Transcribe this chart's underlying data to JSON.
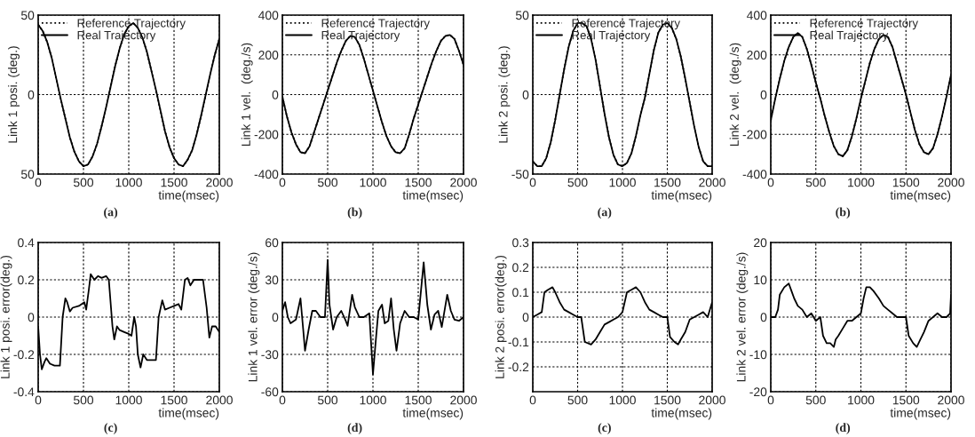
{
  "chart_data": [
    {
      "type": "line",
      "ylabel": "Link 1 posi. (deg.)",
      "xlabel": "time(msec)",
      "annotations": [
        "(a)"
      ],
      "xlim": [
        0,
        2000
      ],
      "xticks": [
        0,
        500,
        1000,
        1500,
        2000
      ],
      "ylim": [
        -50,
        50
      ],
      "yticks": [
        {
          "value": -50,
          "label": "50"
        },
        0,
        50
      ],
      "grid": true,
      "legend": "top left",
      "x": [
        0,
        50,
        100,
        150,
        200,
        250,
        300,
        350,
        400,
        450,
        500,
        550,
        600,
        650,
        700,
        750,
        800,
        850,
        900,
        950,
        1000,
        1050,
        1100,
        1150,
        1200,
        1250,
        1300,
        1350,
        1400,
        1450,
        1500,
        1550,
        1600,
        1650,
        1700,
        1750,
        1800,
        1850,
        1900,
        1950,
        2000
      ],
      "series": [
        {
          "name": "Reference Trajectory",
          "color": "#000000",
          "line_style": "dotted",
          "values": [
            44,
            40,
            33,
            23,
            10,
            -3,
            -15,
            -27,
            -36,
            -42,
            -45,
            -44,
            -39,
            -31,
            -20,
            -8,
            5,
            18,
            29,
            38,
            43,
            45,
            42,
            36,
            27,
            15,
            3,
            -10,
            -23,
            -33,
            -40,
            -44,
            -45,
            -41,
            -35,
            -25,
            -13,
            0,
            13,
            25,
            35
          ]
        },
        {
          "name": "Real Trajectory",
          "color": "#000000",
          "line_style": "solid",
          "values": [
            44,
            40,
            33,
            23,
            10,
            -3,
            -15,
            -27,
            -36,
            -42,
            -45,
            -44,
            -39,
            -31,
            -20,
            -8,
            5,
            18,
            29,
            38,
            43,
            45,
            42,
            36,
            27,
            15,
            3,
            -10,
            -23,
            -33,
            -40,
            -44,
            -45,
            -41,
            -35,
            -25,
            -13,
            0,
            13,
            25,
            35
          ]
        }
      ]
    },
    {
      "type": "line",
      "ylabel": "Link 1 vel.  (deg./s)",
      "xlabel": "time(msec)",
      "annotations": [
        "(b)"
      ],
      "xlim": [
        0,
        2000
      ],
      "xticks": [
        0,
        500,
        1000,
        1500,
        2000
      ],
      "ylim": [
        -400,
        400
      ],
      "yticks": [
        -400,
        -200,
        0,
        200,
        400
      ],
      "grid": true,
      "legend": "top left",
      "x": [
        0,
        50,
        100,
        150,
        200,
        250,
        300,
        350,
        400,
        450,
        500,
        550,
        600,
        650,
        700,
        750,
        800,
        850,
        900,
        950,
        1000,
        1050,
        1100,
        1150,
        1200,
        1250,
        1300,
        1350,
        1400,
        1450,
        1500,
        1550,
        1600,
        1650,
        1700,
        1750,
        1800,
        1850,
        1900,
        1950,
        2000
      ],
      "series": [
        {
          "name": "Reference Trajectory",
          "color": "#000000",
          "line_style": "dotted",
          "values": [
            -10,
            -110,
            -190,
            -250,
            -290,
            -295,
            -260,
            -190,
            -120,
            -50,
            20,
            90,
            160,
            220,
            270,
            295,
            290,
            250,
            180,
            100,
            20,
            -60,
            -140,
            -210,
            -260,
            -290,
            -295,
            -270,
            -200,
            -120,
            -50,
            20,
            90,
            160,
            220,
            270,
            295,
            300,
            280,
            220,
            150
          ]
        },
        {
          "name": "Real Trajectory",
          "color": "#000000",
          "line_style": "solid",
          "values": [
            -10,
            -110,
            -190,
            -250,
            -290,
            -295,
            -260,
            -190,
            -120,
            -50,
            20,
            90,
            160,
            220,
            270,
            295,
            290,
            250,
            180,
            100,
            20,
            -60,
            -140,
            -210,
            -260,
            -290,
            -295,
            -270,
            -200,
            -120,
            -50,
            20,
            90,
            160,
            220,
            270,
            295,
            300,
            280,
            220,
            150
          ]
        }
      ]
    },
    {
      "type": "line",
      "ylabel": "Link 2 posi. (deg.)",
      "xlabel": "time(msec)",
      "annotations": [
        "(a)"
      ],
      "xlim": [
        0,
        2000
      ],
      "xticks": [
        0,
        500,
        1000,
        1500,
        2000
      ],
      "ylim": [
        -50,
        50
      ],
      "yticks": [
        -50,
        0,
        50
      ],
      "grid": true,
      "legend": "top left",
      "x": [
        0,
        50,
        100,
        150,
        200,
        250,
        300,
        350,
        400,
        450,
        500,
        550,
        600,
        650,
        700,
        750,
        800,
        850,
        900,
        950,
        1000,
        1050,
        1100,
        1150,
        1200,
        1250,
        1300,
        1350,
        1400,
        1450,
        1500,
        1550,
        1600,
        1650,
        1700,
        1750,
        1800,
        1850,
        1900,
        1950,
        2000
      ],
      "series": [
        {
          "name": "Reference Trajectory",
          "color": "#000000",
          "line_style": "dotted",
          "values": [
            -42,
            -45,
            -45,
            -40,
            -30,
            -16,
            0,
            16,
            30,
            40,
            45,
            45,
            43,
            35,
            22,
            5,
            -12,
            -27,
            -38,
            -44,
            -45,
            -43,
            -37,
            -26,
            -13,
            -2,
            13,
            28,
            39,
            44,
            45,
            42,
            35,
            24,
            10,
            -5,
            -20,
            -33,
            -42,
            -45,
            -45
          ]
        },
        {
          "name": "Real Trajectory",
          "color": "#000000",
          "line_style": "solid",
          "values": [
            -42,
            -45,
            -45,
            -40,
            -30,
            -16,
            0,
            16,
            30,
            40,
            45,
            45,
            43,
            35,
            22,
            5,
            -12,
            -27,
            -38,
            -44,
            -45,
            -43,
            -37,
            -26,
            -13,
            -2,
            13,
            28,
            39,
            44,
            45,
            42,
            35,
            24,
            10,
            -5,
            -20,
            -33,
            -42,
            -45,
            -45
          ]
        }
      ]
    },
    {
      "type": "line",
      "ylabel": "Link 2 vel.  (deg./s)",
      "xlabel": "time(msec)",
      "annotations": [
        "(b)"
      ],
      "xlim": [
        0,
        2000
      ],
      "xticks": [
        0,
        500,
        1000,
        1500,
        2000
      ],
      "ylim": [
        -400,
        400
      ],
      "yticks": [
        -400,
        -200,
        0,
        200,
        400
      ],
      "grid": true,
      "legend": "top left",
      "x": [
        0,
        50,
        100,
        150,
        200,
        250,
        300,
        350,
        400,
        450,
        500,
        550,
        600,
        650,
        700,
        750,
        800,
        850,
        900,
        950,
        1000,
        1050,
        1100,
        1150,
        1200,
        1250,
        1300,
        1350,
        1400,
        1450,
        1500,
        1550,
        1600,
        1650,
        1700,
        1750,
        1800,
        1850,
        1900,
        1950,
        2000
      ],
      "series": [
        {
          "name": "Reference Trajectory",
          "color": "#000000",
          "line_style": "dotted",
          "values": [
            -130,
            -20,
            80,
            170,
            240,
            290,
            310,
            290,
            230,
            150,
            60,
            -20,
            -110,
            -190,
            -260,
            -300,
            -310,
            -280,
            -210,
            -120,
            -20,
            70,
            160,
            230,
            280,
            300,
            290,
            240,
            160,
            80,
            0,
            -90,
            -180,
            -250,
            -290,
            -300,
            -270,
            -200,
            -110,
            -10,
            100
          ]
        },
        {
          "name": "Real Trajectory",
          "color": "#000000",
          "line_style": "solid",
          "values": [
            -130,
            -20,
            80,
            170,
            240,
            290,
            310,
            290,
            230,
            150,
            60,
            -20,
            -110,
            -190,
            -260,
            -300,
            -310,
            -280,
            -210,
            -120,
            -20,
            70,
            160,
            230,
            280,
            300,
            290,
            240,
            160,
            80,
            0,
            -90,
            -180,
            -250,
            -290,
            -300,
            -270,
            -200,
            -110,
            -10,
            100
          ]
        }
      ]
    },
    {
      "type": "line",
      "ylabel": "Link 1 posi. error(deg.)",
      "xlabel": "time(msec)",
      "annotations": [
        "(c)"
      ],
      "xlim": [
        0,
        2000
      ],
      "xticks": [
        0,
        500,
        1000,
        1500,
        2000
      ],
      "ylim": [
        -0.4,
        0.4
      ],
      "yticks": [
        -0.4,
        -0.2,
        0,
        0.2,
        0.4
      ],
      "grid": true,
      "series": [
        {
          "color": "#000000",
          "line_style": "solid",
          "x": [
            0,
            20,
            40,
            70,
            90,
            130,
            180,
            240,
            270,
            300,
            320,
            350,
            380,
            450,
            510,
            530,
            560,
            580,
            620,
            660,
            700,
            750,
            780,
            820,
            840,
            870,
            900,
            950,
            1000,
            1030,
            1060,
            1080,
            1100,
            1130,
            1160,
            1200,
            1250,
            1300,
            1330,
            1370,
            1400,
            1450,
            1550,
            1580,
            1620,
            1650,
            1680,
            1720,
            1780,
            1820,
            1860,
            1890,
            1920,
            1960,
            2000
          ],
          "values": [
            -0.05,
            -0.2,
            -0.28,
            -0.24,
            -0.22,
            -0.25,
            -0.26,
            -0.26,
            0,
            0.1,
            0.08,
            0.03,
            0.05,
            0.06,
            0.08,
            0.04,
            0.15,
            0.23,
            0.2,
            0.22,
            0.21,
            0.22,
            0.2,
            -0.05,
            -0.12,
            -0.05,
            -0.07,
            -0.08,
            -0.09,
            -0.1,
            0,
            -0.05,
            -0.2,
            -0.27,
            -0.2,
            -0.23,
            -0.23,
            -0.23,
            0,
            0.09,
            0.04,
            0.05,
            0.07,
            0.04,
            0.2,
            0.21,
            0.17,
            0.2,
            0.2,
            0.2,
            0.05,
            -0.11,
            -0.05,
            -0.05,
            -0.08
          ]
        }
      ]
    },
    {
      "type": "line",
      "ylabel": "Link 1 vel. error (deg./s)",
      "xlabel": "time(msec)",
      "annotations": [
        "(d)"
      ],
      "xlim": [
        0,
        2000
      ],
      "xticks": [
        0,
        500,
        1000,
        1500,
        2000
      ],
      "ylim": [
        -60,
        60
      ],
      "yticks": [
        -60,
        -30,
        0,
        30,
        60
      ],
      "grid": true,
      "series": [
        {
          "color": "#000000",
          "line_style": "solid",
          "x": [
            0,
            30,
            60,
            90,
            150,
            200,
            230,
            250,
            290,
            330,
            370,
            420,
            470,
            500,
            520,
            560,
            600,
            650,
            700,
            720,
            770,
            800,
            850,
            900,
            960,
            1000,
            1030,
            1060,
            1100,
            1130,
            1170,
            1200,
            1230,
            1260,
            1300,
            1350,
            1400,
            1450,
            1500,
            1560,
            1600,
            1640,
            1680,
            1720,
            1760,
            1820,
            1860,
            1900,
            1950,
            2000
          ],
          "values": [
            5,
            12,
            0,
            -5,
            -2,
            15,
            -10,
            -27,
            -10,
            5,
            5,
            0,
            0,
            46,
            10,
            -10,
            0,
            5,
            -3,
            -7,
            18,
            8,
            0,
            0,
            3,
            -46,
            -20,
            5,
            10,
            -5,
            -3,
            15,
            -10,
            -27,
            -5,
            5,
            0,
            0,
            -2,
            44,
            10,
            -10,
            2,
            5,
            -8,
            18,
            5,
            -2,
            -3,
            0
          ]
        }
      ]
    },
    {
      "type": "line",
      "ylabel": "Link 2 posi. error(deg.)",
      "xlabel": "time(msec)",
      "annotations": [
        "(c)"
      ],
      "xlim": [
        0,
        2000
      ],
      "xticks": [
        0,
        500,
        1000,
        1500,
        2000
      ],
      "ylim": [
        -0.3,
        0.3
      ],
      "yticks": [
        -0.2,
        -0.1,
        0,
        0.1,
        0.2,
        0.3
      ],
      "grid": true,
      "series": [
        {
          "color": "#000000",
          "line_style": "solid",
          "x": [
            0,
            50,
            100,
            130,
            170,
            220,
            250,
            300,
            350,
            400,
            450,
            500,
            540,
            560,
            580,
            650,
            700,
            750,
            800,
            850,
            900,
            950,
            1000,
            1050,
            1100,
            1150,
            1200,
            1250,
            1300,
            1350,
            1400,
            1450,
            1500,
            1530,
            1580,
            1620,
            1650,
            1700,
            1750,
            1800,
            1850,
            1900,
            1950,
            2000
          ],
          "values": [
            0,
            0.01,
            0.02,
            0.1,
            0.11,
            0.12,
            0.1,
            0.06,
            0.03,
            0.02,
            0.01,
            0,
            0,
            -0.05,
            -0.1,
            -0.11,
            -0.09,
            -0.06,
            -0.03,
            -0.02,
            -0.01,
            0,
            0.02,
            0.1,
            0.11,
            0.12,
            0.1,
            0.06,
            0.03,
            0.02,
            0.01,
            0,
            0,
            -0.08,
            -0.1,
            -0.11,
            -0.09,
            -0.06,
            -0.01,
            0,
            0.01,
            0.02,
            0,
            0.06
          ]
        }
      ]
    },
    {
      "type": "line",
      "ylabel": "Link 2 vel. error (deg./s)",
      "xlabel": "time(msec)",
      "annotations": [
        "(d)"
      ],
      "xlim": [
        0,
        2000
      ],
      "xticks": [
        0,
        500,
        1000,
        1500,
        2000
      ],
      "ylim": [
        -20,
        20
      ],
      "yticks": [
        -20,
        -10,
        0,
        10,
        20
      ],
      "grid": true,
      "series": [
        {
          "color": "#000000",
          "line_style": "solid",
          "x": [
            0,
            50,
            80,
            100,
            150,
            200,
            230,
            260,
            300,
            350,
            400,
            450,
            500,
            550,
            580,
            620,
            660,
            700,
            720,
            750,
            800,
            850,
            900,
            950,
            1000,
            1030,
            1060,
            1100,
            1140,
            1200,
            1250,
            1300,
            1350,
            1400,
            1450,
            1500,
            1530,
            1580,
            1620,
            1660,
            1700,
            1750,
            1800,
            1850,
            1900,
            1950,
            1990,
            2000
          ],
          "values": [
            0,
            0,
            2,
            6,
            8,
            9,
            7,
            5,
            3,
            2,
            0,
            1,
            -1,
            0,
            -5,
            -7,
            -7,
            -8,
            -6,
            -5,
            -3,
            -1,
            -1,
            0,
            1,
            5,
            8,
            8,
            7,
            5,
            3,
            2,
            1,
            0,
            0,
            0,
            -5,
            -7,
            -8,
            -6,
            -4,
            -1,
            0,
            1,
            0,
            0,
            1,
            6
          ]
        }
      ]
    }
  ]
}
